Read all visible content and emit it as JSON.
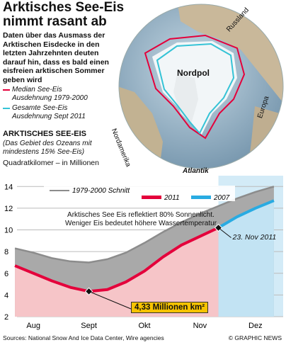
{
  "header": {
    "title": "Arktisches See-Eis nimmt rasant ab",
    "description": "Daten über das Ausmass der Arktischen Eisdecke in den letzten Jahrzehnten deuten darauf hin, dass es bald einen eisfreien arktischen Sommer geben wird"
  },
  "map": {
    "labels": [
      "Russland",
      "Nordpol",
      "Nordamerika",
      "Europa",
      "Atlantik"
    ],
    "legend": [
      {
        "label": "Median See-Eis Ausdehnung 1979-2000",
        "color": "#e4003b"
      },
      {
        "label": "Gesamte See-Eis Ausdehnung Sept 2011",
        "color": "#35c3d6"
      }
    ]
  },
  "chart_data": {
    "type": "line",
    "section_title": "ARKTISCHES SEE-EIS",
    "subtitle": "(Das Gebiet des Ozeans mit mindestens 15% See-Eis)",
    "y_label": "Quadratkilomer – in Millionen",
    "categories": [
      null,
      "Aug",
      null,
      null,
      "Sept",
      null,
      null,
      "Okt",
      null,
      null,
      "Nov",
      null,
      null,
      "Dez",
      null
    ],
    "series": [
      {
        "name": "1979-2000 Schnitt",
        "color": "#8c8c8c",
        "values": [
          8.3,
          7.9,
          7.4,
          7.1,
          7.0,
          7.3,
          7.9,
          8.8,
          9.8,
          10.7,
          11.5,
          12.2,
          12.9,
          13.5,
          14.0
        ]
      },
      {
        "name": "2011",
        "color": "#e4003b",
        "values": [
          6.7,
          6.0,
          5.3,
          4.7,
          4.33,
          4.5,
          5.2,
          6.2,
          7.5,
          8.6,
          9.4,
          10.2,
          null,
          null,
          null
        ]
      },
      {
        "name": "2007",
        "color": "#29abe2",
        "values": [
          null,
          null,
          null,
          null,
          null,
          null,
          null,
          null,
          null,
          null,
          null,
          10.2,
          11.2,
          12.0,
          12.7
        ]
      }
    ],
    "ylim": [
      2,
      15
    ],
    "yticks": [
      2,
      4,
      6,
      8,
      10,
      12,
      14
    ],
    "grid": true,
    "annotations": [
      "Arktisches See Eis reflektiert 80% Sonnenlicht. Weniger Eis bedeutet höhere Wassertemperatur",
      "23. Nov 2011",
      "4,33 Millionen km²"
    ]
  },
  "footer": {
    "source": "Sources: National Snow And Ice Data Center, Wire agencies",
    "credit": "© GRAPHIC NEWS"
  }
}
